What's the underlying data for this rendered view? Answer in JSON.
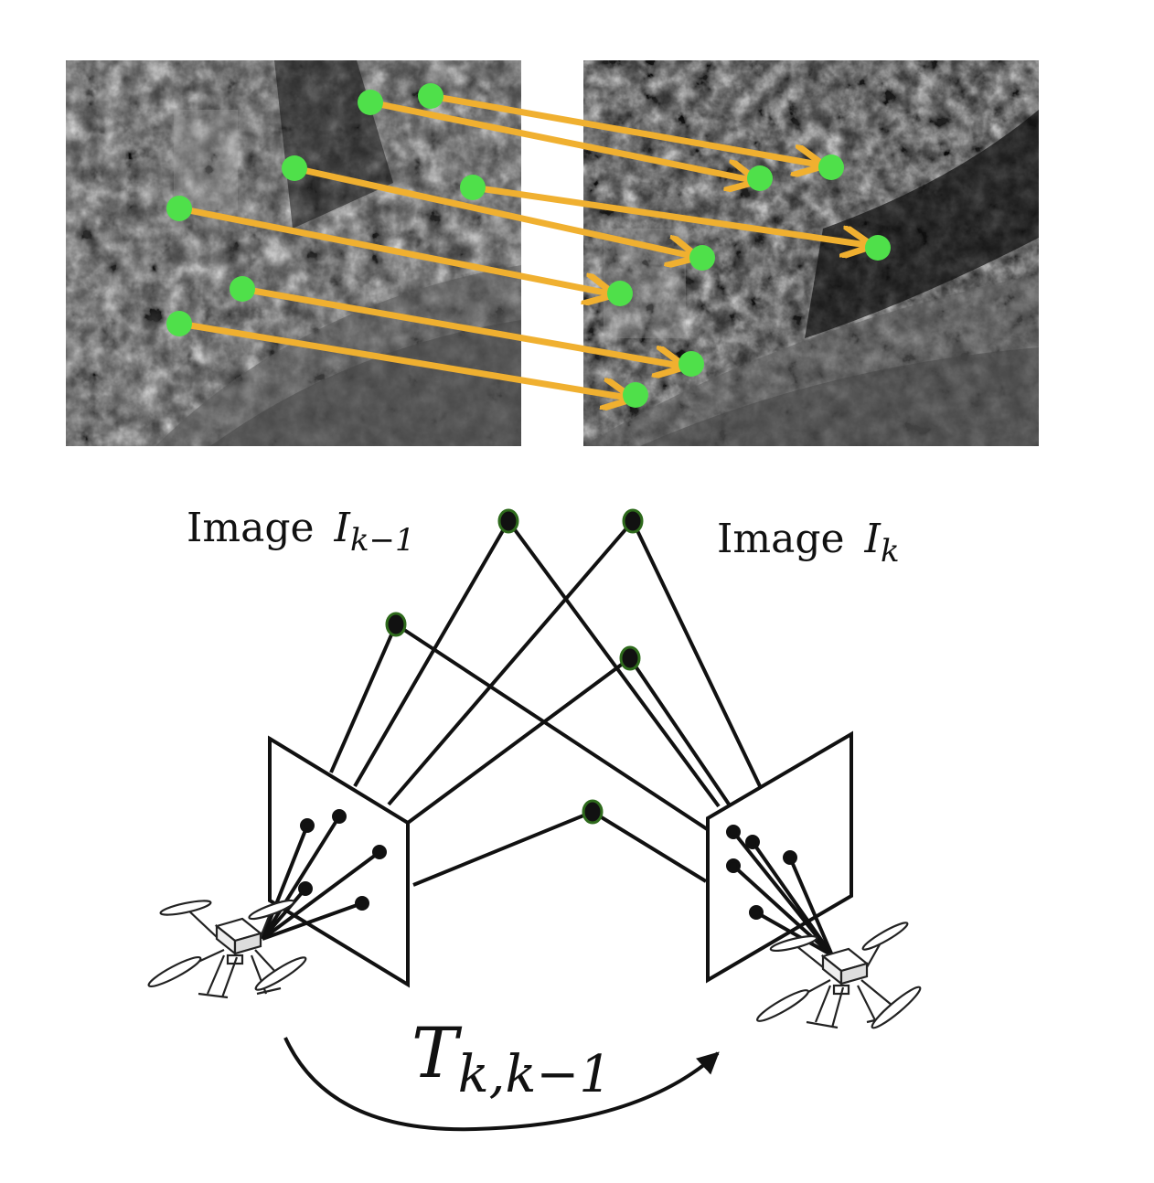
{
  "labels": {
    "image_prev_word": "Image",
    "image_prev_symbol": "I",
    "image_prev_subscript": "k−1",
    "image_curr_word": "Image",
    "image_curr_symbol": "I",
    "image_curr_subscript": "k",
    "transform_symbol": "T",
    "transform_subscript": "k,k−1"
  },
  "colors": {
    "keypoint": "#4fe04a",
    "match_arrow": "#f0b030",
    "line": "#111111",
    "landmark": "#1d3a12"
  },
  "icons": {
    "camera_prev": "drone-icon",
    "camera_curr": "drone-icon"
  }
}
